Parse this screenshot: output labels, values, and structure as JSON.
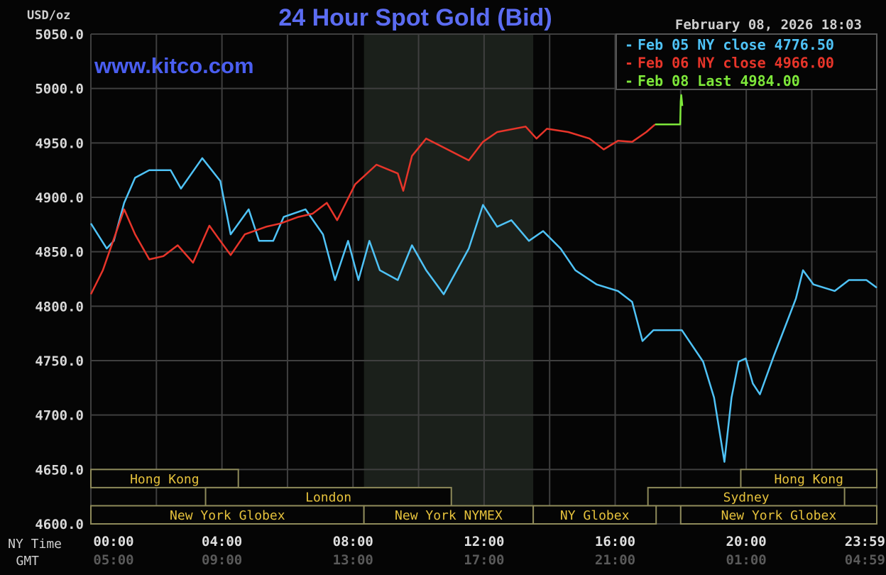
{
  "chart_data": {
    "type": "line",
    "title": "24 Hour Spot Gold (Bid)",
    "ylabel": "USD/oz",
    "watermark": "www.kitco.com",
    "timestamp": "February 08, 2026 18:03",
    "ylim": [
      4600,
      5050
    ],
    "yticks": [
      "5050.0",
      "5000.0",
      "4950.0",
      "4900.0",
      "4850.0",
      "4800.0",
      "4750.0",
      "4700.0",
      "4650.0",
      "4600.0"
    ],
    "grid": true,
    "legend_position": "top-right",
    "xaxis": {
      "row_labels": [
        "NY Time",
        "GMT"
      ],
      "ny_ticks": [
        "00:00",
        "04:00",
        "08:00",
        "12:00",
        "16:00",
        "20:00",
        "23:59"
      ],
      "gmt_ticks": [
        "05:00",
        "09:00",
        "13:00",
        "17:00",
        "21:00",
        "01:00",
        "04:59"
      ]
    },
    "shaded_period": [
      "08:20",
      "13:30"
    ],
    "series": [
      {
        "name": "Feb 05 NY close 4776.50",
        "color": "#4fc3f7",
        "points": [
          [
            "00:00",
            4876
          ],
          [
            "00:29",
            4853
          ],
          [
            "00:42",
            4860
          ],
          [
            "01:01",
            4895
          ],
          [
            "01:21",
            4918
          ],
          [
            "01:47",
            4925
          ],
          [
            "02:26",
            4925
          ],
          [
            "02:45",
            4908
          ],
          [
            "03:24",
            4936
          ],
          [
            "03:57",
            4915
          ],
          [
            "04:16",
            4866
          ],
          [
            "04:49",
            4889
          ],
          [
            "05:08",
            4860
          ],
          [
            "05:34",
            4860
          ],
          [
            "05:53",
            4882
          ],
          [
            "06:33",
            4889
          ],
          [
            "07:05",
            4866
          ],
          [
            "07:27",
            4824
          ],
          [
            "07:51",
            4860
          ],
          [
            "08:10",
            4824
          ],
          [
            "08:30",
            4860
          ],
          [
            "08:49",
            4833
          ],
          [
            "09:22",
            4824
          ],
          [
            "09:48",
            4856
          ],
          [
            "10:14",
            4833
          ],
          [
            "10:46",
            4811
          ],
          [
            "11:32",
            4853
          ],
          [
            "11:58",
            4893
          ],
          [
            "12:24",
            4873
          ],
          [
            "12:50",
            4879
          ],
          [
            "13:22",
            4860
          ],
          [
            "13:48",
            4869
          ],
          [
            "14:20",
            4853
          ],
          [
            "14:47",
            4833
          ],
          [
            "15:26",
            4820
          ],
          [
            "16:05",
            4814
          ],
          [
            "16:31",
            4804
          ],
          [
            "16:50",
            4768
          ],
          [
            "17:10",
            4778
          ],
          [
            "18:02",
            4778
          ],
          [
            "18:41",
            4749
          ],
          [
            "19:01",
            4716
          ],
          [
            "19:20",
            4657
          ],
          [
            "19:33",
            4716
          ],
          [
            "19:46",
            4749
          ],
          [
            "19:59",
            4752
          ],
          [
            "20:12",
            4729
          ],
          [
            "20:25",
            4719
          ],
          [
            "20:51",
            4755
          ],
          [
            "21:11",
            4781
          ],
          [
            "21:31",
            4807
          ],
          [
            "21:44",
            4833
          ],
          [
            "22:03",
            4820
          ],
          [
            "22:42",
            4814
          ],
          [
            "23:08",
            4824
          ],
          [
            "23:40",
            4824
          ],
          [
            "23:59",
            4817
          ]
        ]
      },
      {
        "name": "Feb 06 NY close 4966.00",
        "color": "#e8352a",
        "points": [
          [
            "00:00",
            4811
          ],
          [
            "00:22",
            4833
          ],
          [
            "01:01",
            4889
          ],
          [
            "01:21",
            4866
          ],
          [
            "01:47",
            4843
          ],
          [
            "02:13",
            4846
          ],
          [
            "02:39",
            4856
          ],
          [
            "03:07",
            4840
          ],
          [
            "03:37",
            4874
          ],
          [
            "03:57",
            4860
          ],
          [
            "04:16",
            4847
          ],
          [
            "04:42",
            4866
          ],
          [
            "05:21",
            4873
          ],
          [
            "05:47",
            4876
          ],
          [
            "06:20",
            4882
          ],
          [
            "06:46",
            4885
          ],
          [
            "07:12",
            4895
          ],
          [
            "07:31",
            4879
          ],
          [
            "08:04",
            4912
          ],
          [
            "08:43",
            4930
          ],
          [
            "09:22",
            4922
          ],
          [
            "09:32",
            4906
          ],
          [
            "09:48",
            4938
          ],
          [
            "10:14",
            4954
          ],
          [
            "10:53",
            4944
          ],
          [
            "11:32",
            4934
          ],
          [
            "11:58",
            4951
          ],
          [
            "12:24",
            4960
          ],
          [
            "13:16",
            4965
          ],
          [
            "13:36",
            4954
          ],
          [
            "13:55",
            4963
          ],
          [
            "14:34",
            4960
          ],
          [
            "15:13",
            4954
          ],
          [
            "15:39",
            4944
          ],
          [
            "16:05",
            4952
          ],
          [
            "16:31",
            4951
          ],
          [
            "16:57",
            4960
          ],
          [
            "17:13",
            4967
          ]
        ]
      },
      {
        "name": "Feb 08 Last 4984.00",
        "color": "#7ee83a",
        "points": [
          [
            "17:13",
            4967
          ],
          [
            "17:59",
            4967
          ],
          [
            "18:00",
            4988
          ],
          [
            "18:01",
            4994
          ],
          [
            "18:03",
            4984
          ]
        ]
      }
    ],
    "sessions": [
      {
        "label": "Hong Kong",
        "row": 0,
        "start": "00:00",
        "end": "04:30"
      },
      {
        "label": "Hong Kong",
        "row": 0,
        "start": "19:50",
        "end": "23:59"
      },
      {
        "label": "London",
        "row": 1,
        "start": "03:30",
        "end": "11:00"
      },
      {
        "label": "Sydney",
        "row": 1,
        "start": "17:00",
        "end": "23:00"
      },
      {
        "label": "New York Globex",
        "row": 2,
        "start": "00:00",
        "end": "08:20"
      },
      {
        "label": "New York NYMEX",
        "row": 2,
        "start": "08:20",
        "end": "13:30"
      },
      {
        "label": "NY Globex",
        "row": 2,
        "start": "13:30",
        "end": "17:15"
      },
      {
        "label": "New York Globex",
        "row": 2,
        "start": "18:00",
        "end": "23:59"
      }
    ]
  }
}
